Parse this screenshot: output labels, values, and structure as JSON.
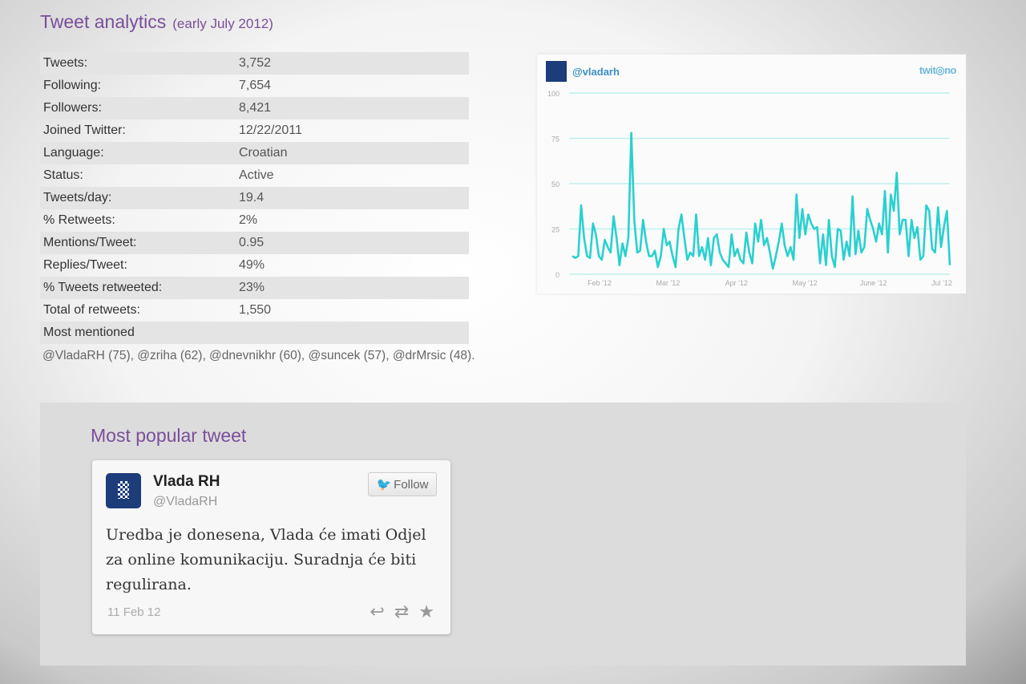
{
  "header": {
    "title": "Tweet analytics",
    "subtitle": "(early July 2012)"
  },
  "stats": [
    {
      "label": "Tweets:",
      "value": "3,752"
    },
    {
      "label": "Following:",
      "value": "7,654"
    },
    {
      "label": "Followers:",
      "value": "8,421"
    },
    {
      "label": "Joined Twitter:",
      "value": "12/22/2011"
    },
    {
      "label": "Language:",
      "value": "Croatian"
    },
    {
      "label": "Status:",
      "value": "Active"
    },
    {
      "label": "Tweets/day:",
      "value": "19.4"
    },
    {
      "label": "% Retweets:",
      "value": "2%"
    },
    {
      "label": "Mentions/Tweet:",
      "value": "0.95"
    },
    {
      "label": "Replies/Tweet:",
      "value": "49%"
    },
    {
      "label": "% Tweets retweeted:",
      "value": "23%"
    },
    {
      "label": "Total of retweets:",
      "value": "1,550"
    },
    {
      "label": "Most mentioned",
      "value": ""
    }
  ],
  "most_mentioned": "@VladaRH (75), @zriha (62), @dnevnikhr (60), @suncek (57), @drMrsic (48).",
  "chart_box": {
    "handle": "@vladarh",
    "brand": "twitonomy"
  },
  "chart_data": {
    "type": "line",
    "color": "#2ad0d0",
    "ylim": [
      0,
      100
    ],
    "yticks": [
      "0",
      "25",
      "50",
      "75",
      "100"
    ],
    "xticks": [
      "Feb '12",
      "Mar '12",
      "Apr '12",
      "May '12",
      "June '12",
      "Jul '12"
    ],
    "grid": true,
    "values": [
      10,
      9,
      10,
      38,
      20,
      10,
      9,
      28,
      22,
      10,
      8,
      19,
      15,
      12,
      32,
      20,
      5,
      17,
      10,
      20,
      78,
      30,
      12,
      13,
      30,
      18,
      10,
      10,
      13,
      4,
      10,
      25,
      16,
      18,
      10,
      4,
      25,
      33,
      20,
      8,
      12,
      10,
      33,
      10,
      15,
      8,
      20,
      5,
      20,
      22,
      12,
      8,
      6,
      4,
      22,
      10,
      14,
      8,
      6,
      23,
      12,
      6,
      28,
      18,
      30,
      16,
      20,
      12,
      3,
      10,
      18,
      28,
      16,
      10,
      15,
      8,
      44,
      20,
      36,
      22,
      33,
      28,
      25,
      26,
      6,
      22,
      5,
      30,
      10,
      4,
      25,
      24,
      8,
      18,
      10,
      43,
      11,
      24,
      12,
      15,
      36,
      30,
      25,
      18,
      28,
      22,
      46,
      12,
      44,
      35,
      56,
      22,
      30,
      30,
      10,
      30,
      20,
      26,
      8,
      10,
      38,
      35,
      14,
      12,
      37,
      15,
      26,
      35,
      5
    ]
  },
  "popular": {
    "heading": "Most popular tweet",
    "name": "Vlada RH",
    "username": "@VladaRH",
    "follow_label": "Follow",
    "text": "Uredba je donesena, Vlada će imati Odjel za online komunikaciju. Suradnja će biti regulirana.",
    "date": "11 Feb 12"
  }
}
